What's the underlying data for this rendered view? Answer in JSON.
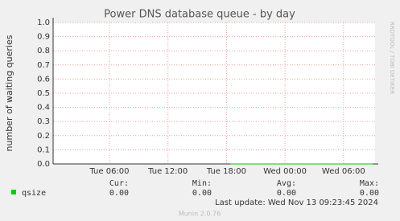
{
  "chart_data": {
    "type": "line",
    "title": "Power DNS database queue - by day",
    "y_label": "number of waiting queries",
    "x": [
      "Tue 06:00",
      "Tue 12:00",
      "Tue 18:00",
      "Wed 00:00",
      "Wed 06:00"
    ],
    "series": [
      {
        "name": "qsize",
        "color": "#00cc00",
        "values": [
          null,
          null,
          0,
          0,
          0
        ]
      }
    ],
    "ylim": [
      0,
      1
    ],
    "yticks": [
      {
        "value": 0,
        "label": "0.0"
      },
      {
        "value": 0.1,
        "label": "0.1"
      },
      {
        "value": 0.2,
        "label": "0.2"
      },
      {
        "value": 0.3,
        "label": "0.3"
      },
      {
        "value": 0.4,
        "label": "0.4"
      },
      {
        "value": 0.5,
        "label": "0.5"
      },
      {
        "value": 0.6,
        "label": "0.6"
      },
      {
        "value": 0.7,
        "label": "0.7"
      },
      {
        "value": 0.8,
        "label": "0.8"
      },
      {
        "value": 0.9,
        "label": "0.9"
      },
      {
        "value": 1,
        "label": "1.0"
      }
    ],
    "grid": true,
    "legend_headers": [
      "Cur:",
      "Min:",
      "Avg:",
      "Max:"
    ],
    "legend_values": [
      "0.00",
      "0.00",
      "0.00",
      "0.00"
    ],
    "last_update": "Last update: Wed Nov 13 09:23:45 2024",
    "side_text": "RRDTOOL / TOBI OETIKER",
    "footer": "Munin 2.0.76"
  }
}
